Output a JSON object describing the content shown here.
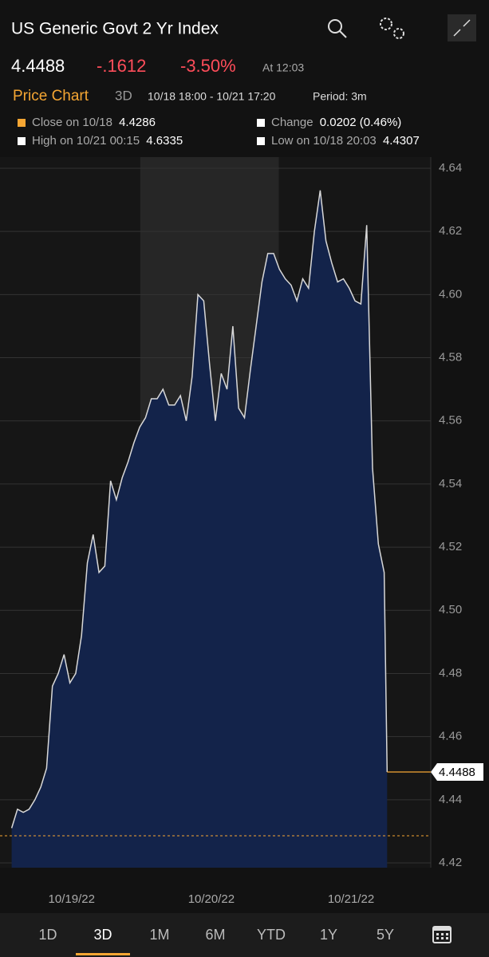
{
  "header": {
    "title": "US Generic Govt 2 Yr Index"
  },
  "quote": {
    "last": "4.4488",
    "change": "-.1612",
    "change_pct": "-3.50%",
    "time": "At 12:03"
  },
  "chart_header": {
    "title": "Price Chart",
    "range": "3D",
    "span": "10/18 18:00 - 10/21 17:20",
    "period": "Period: 3m"
  },
  "stats": [
    {
      "label": "Close on 10/18",
      "value": "4.4286"
    },
    {
      "label": "Change",
      "value": "0.0202 (0.46%)"
    },
    {
      "label": "High on 10/21 00:15",
      "value": "4.6335"
    },
    {
      "label": "Low on 10/18 20:03",
      "value": "4.4307"
    }
  ],
  "chart_data": {
    "type": "area",
    "color": "#d8d8d8",
    "fill_color": "#13234a",
    "last_value": 4.4488,
    "reference_value": 4.4286,
    "x": [
      0,
      1,
      2,
      3,
      4,
      5,
      6,
      7,
      8,
      9,
      10,
      11,
      12,
      13,
      14,
      15,
      16,
      17,
      18,
      19,
      20,
      21,
      22,
      23,
      24,
      25,
      26,
      27,
      28,
      29,
      30,
      31,
      32,
      33,
      34,
      35,
      36,
      37,
      38,
      39,
      40,
      41,
      42,
      43,
      44,
      45,
      46,
      47,
      48,
      49,
      50,
      51,
      52,
      53,
      54,
      55,
      56,
      57,
      58,
      59,
      60,
      61,
      62,
      63,
      64,
      64.5
    ],
    "values": [
      4.431,
      4.437,
      4.436,
      4.437,
      4.44,
      4.444,
      4.45,
      4.476,
      4.48,
      4.486,
      4.477,
      4.48,
      4.492,
      4.515,
      4.524,
      4.512,
      4.514,
      4.541,
      4.535,
      4.542,
      4.547,
      4.553,
      4.558,
      4.561,
      4.567,
      4.567,
      4.57,
      4.565,
      4.565,
      4.568,
      4.56,
      4.574,
      4.6,
      4.598,
      4.578,
      4.56,
      4.575,
      4.57,
      4.59,
      4.564,
      4.561,
      4.576,
      4.59,
      4.604,
      4.613,
      4.613,
      4.608,
      4.605,
      4.603,
      4.598,
      4.605,
      4.602,
      4.62,
      4.633,
      4.617,
      4.61,
      4.604,
      4.605,
      4.602,
      4.598,
      4.597,
      4.622,
      4.545,
      4.521,
      4.512,
      4.4488
    ],
    "shaded_x": [
      22.1,
      45.9
    ],
    "xlim": [
      -2,
      72
    ],
    "xticks": [
      {
        "value": 10.3,
        "label": "10/19/22"
      },
      {
        "value": 34.3,
        "label": "10/20/22"
      },
      {
        "value": 58.3,
        "label": "10/21/22"
      }
    ],
    "ylim": [
      4.42,
      4.64
    ],
    "yticks": [
      4.42,
      4.44,
      4.46,
      4.48,
      {
        "value": 4.5,
        "label": "4.50"
      },
      4.52,
      4.54,
      4.56,
      4.58,
      {
        "value": 4.6,
        "label": "4.60"
      },
      4.62,
      4.64
    ],
    "grid": true
  },
  "tabs": {
    "items": [
      "1D",
      "3D",
      "1M",
      "6M",
      "YTD",
      "1Y",
      "5Y"
    ],
    "selected": 1
  }
}
